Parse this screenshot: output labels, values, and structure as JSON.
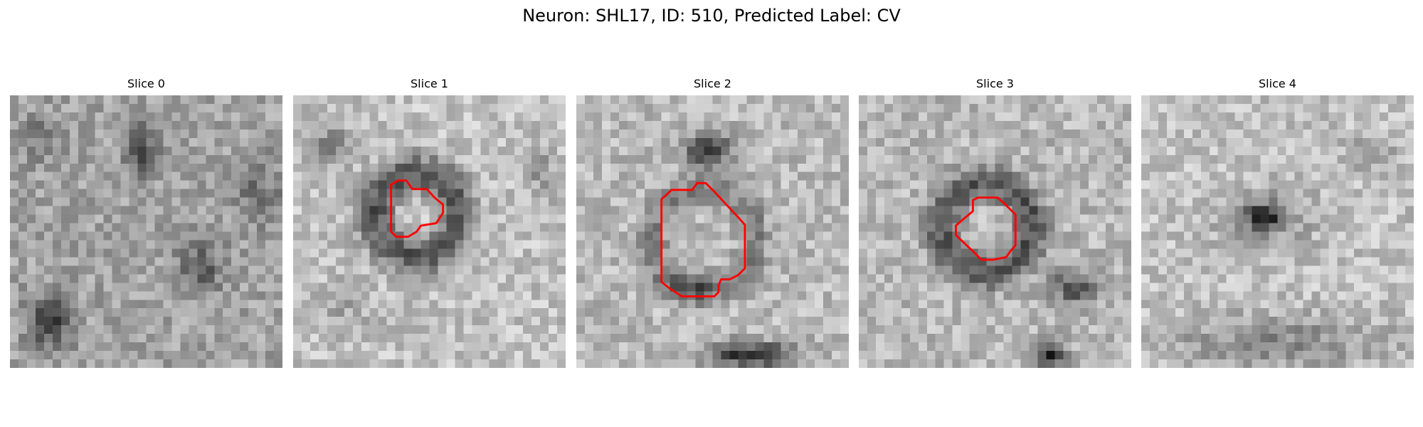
{
  "figure": {
    "title": "Neuron: SHL17, ID: 510, Predicted Label: CV"
  },
  "panels": [
    {
      "title": "Slice 0",
      "has_contour": false
    },
    {
      "title": "Slice 1",
      "has_contour": true
    },
    {
      "title": "Slice 2",
      "has_contour": true
    },
    {
      "title": "Slice 3",
      "has_contour": true
    },
    {
      "title": "Slice 4",
      "has_contour": false
    }
  ],
  "colors": {
    "contour": "#ff0000",
    "colormap": "grayscale"
  }
}
